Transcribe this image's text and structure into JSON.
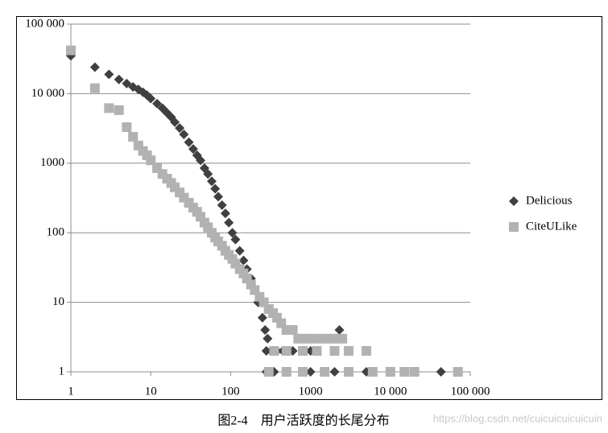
{
  "chart_data": {
    "type": "scatter",
    "caption": "图2-4　用户活跃度的长尾分布",
    "watermark": "https://blog.csdn.net/cuicuicuicuicuin",
    "log_x": true,
    "log_y": true,
    "grid": true,
    "legend": "right",
    "xlim": [
      1,
      100000
    ],
    "xticks": [
      1,
      10,
      100,
      1000,
      {
        "value": 10000,
        "label": "10 000"
      },
      {
        "value": 100000,
        "label": "100 000"
      }
    ],
    "ylim": [
      1,
      100000
    ],
    "yticks": [
      1,
      10,
      100,
      1000,
      {
        "value": 10000,
        "label": "10 000"
      },
      {
        "value": 100000,
        "label": "100 000"
      }
    ],
    "series": [
      {
        "name": "Delicious",
        "color": "#404040",
        "marker": "diamond",
        "x": [
          1,
          2,
          3,
          4,
          5,
          6,
          7,
          8,
          9,
          10,
          12,
          14,
          16,
          18,
          20,
          23,
          26,
          30,
          34,
          38,
          42,
          47,
          52,
          58,
          64,
          70,
          78,
          86,
          95,
          105,
          115,
          130,
          145,
          160,
          180,
          200,
          220,
          250,
          270,
          290,
          280,
          320,
          380,
          450,
          600,
          800,
          1000,
          2300,
          280,
          350,
          500,
          1000,
          2000,
          5000,
          10000,
          20000,
          43000
        ],
        "values": [
          35000,
          24000,
          19000,
          16000,
          14000,
          12500,
          11500,
          10500,
          9500,
          8500,
          7200,
          6200,
          5300,
          4600,
          3900,
          3200,
          2600,
          2000,
          1600,
          1300,
          1100,
          850,
          700,
          550,
          430,
          330,
          250,
          190,
          140,
          100,
          80,
          55,
          40,
          30,
          22,
          15,
          10,
          6,
          4,
          3,
          2,
          2,
          2,
          2,
          2,
          2,
          2,
          4,
          1,
          1,
          1,
          1,
          1,
          1,
          1,
          1,
          1
        ]
      },
      {
        "name": "CiteULike",
        "color": "#b2b2b2",
        "marker": "square",
        "x": [
          1,
          2,
          3,
          4,
          5,
          6,
          7,
          8,
          9,
          10,
          12,
          14,
          16,
          18,
          20,
          23,
          26,
          30,
          34,
          38,
          42,
          47,
          52,
          58,
          64,
          70,
          78,
          86,
          95,
          105,
          115,
          130,
          145,
          160,
          180,
          200,
          230,
          260,
          300,
          340,
          380,
          430,
          500,
          600,
          700,
          850,
          1000,
          1300,
          1600,
          2000,
          2500,
          350,
          500,
          800,
          1200,
          2000,
          3000,
          5000,
          300,
          500,
          800,
          1500,
          3000,
          6000,
          10000,
          15000,
          20000,
          70000
        ],
        "values": [
          42000,
          12000,
          6200,
          5800,
          3300,
          2400,
          1800,
          1500,
          1300,
          1100,
          850,
          700,
          600,
          520,
          450,
          380,
          320,
          270,
          230,
          200,
          170,
          140,
          120,
          100,
          85,
          75,
          65,
          55,
          48,
          42,
          36,
          30,
          26,
          22,
          18,
          15,
          12,
          10,
          8,
          7,
          6,
          5,
          4,
          4,
          3,
          3,
          3,
          3,
          3,
          3,
          3,
          2,
          2,
          2,
          2,
          2,
          2,
          2,
          1,
          1,
          1,
          1,
          1,
          1,
          1,
          1,
          1,
          1
        ]
      }
    ]
  }
}
